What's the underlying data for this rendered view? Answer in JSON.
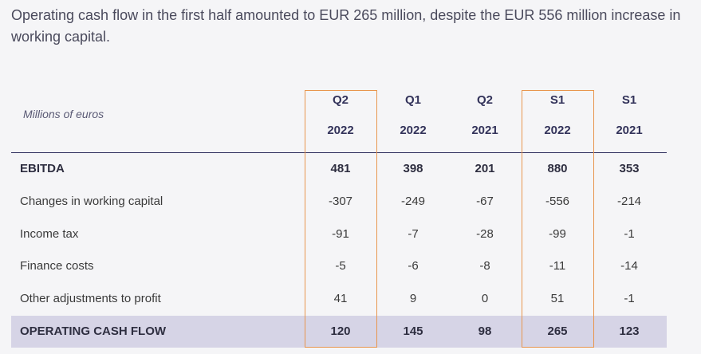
{
  "headline": "Operating cash flow in the first half amounted to EUR 265 million, despite the EUR 556 million increase in working capital.",
  "table": {
    "units": "Millions of euros",
    "columns": [
      {
        "period": "Q2",
        "year": "2022"
      },
      {
        "period": "Q1",
        "year": "2022"
      },
      {
        "period": "Q2",
        "year": "2021"
      },
      {
        "period": "S1",
        "year": "2022"
      },
      {
        "period": "S1",
        "year": "2021"
      }
    ],
    "rows": [
      {
        "label": "EBITDA",
        "values": [
          "481",
          "398",
          "201",
          "880",
          "353"
        ]
      },
      {
        "label": "Changes in working capital",
        "values": [
          "-307",
          "-249",
          "-67",
          "-556",
          "-214"
        ]
      },
      {
        "label": "Income tax",
        "values": [
          "-91",
          "-7",
          "-28",
          "-99",
          "-1"
        ]
      },
      {
        "label": "Finance costs",
        "values": [
          "-5",
          "-6",
          "-8",
          "-11",
          "-14"
        ]
      },
      {
        "label": "Other adjustments to profit",
        "values": [
          "41",
          "9",
          "0",
          "51",
          "-1"
        ]
      },
      {
        "label": "OPERATING CASH FLOW",
        "values": [
          "120",
          "145",
          "98",
          "265",
          "123"
        ]
      }
    ]
  },
  "colors": {
    "highlight_border": "#e8964e",
    "total_row_bg": "#d6d4e6",
    "header_line": "#2c2c5c"
  }
}
